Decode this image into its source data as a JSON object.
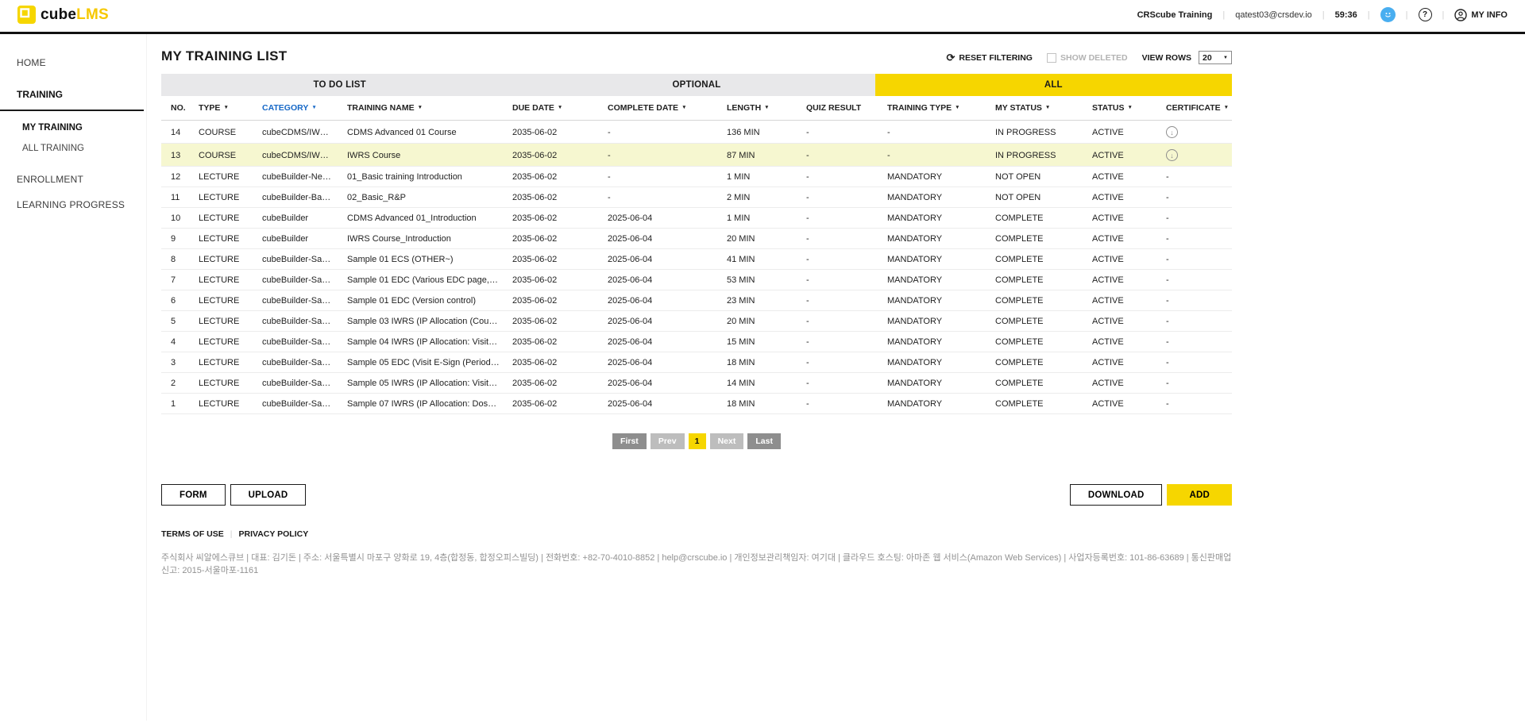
{
  "colors": {
    "accent_yellow": "#f6d600",
    "tab_inactive": "#e8e8ea",
    "highlight_row": "#f6f7d0",
    "filter_active_blue": "#1668c7"
  },
  "icons": {
    "caret": "▼",
    "refresh": "⟳",
    "download_arrow": "↓",
    "question": "?",
    "chat": "●"
  },
  "header": {
    "logo_cube": "cube",
    "logo_lms": "LMS",
    "study_name": "CRScube Training",
    "email": "qatest03@crsdev.io",
    "session_timer": "59:36",
    "my_info_label": "MY INFO",
    "separator": "|"
  },
  "sidebar": {
    "home": "HOME",
    "training": "TRAINING",
    "my_training": "MY TRAINING",
    "all_training": "ALL TRAINING",
    "enrollment": "ENROLLMENT",
    "learning_progress": "LEARNING PROGRESS"
  },
  "main": {
    "title": "MY TRAINING LIST",
    "controls": {
      "reset_filtering": "RESET FILTERING",
      "show_deleted": "SHOW DELETED",
      "view_rows_label": "VIEW ROWS",
      "view_rows_value": "20"
    },
    "tabs": [
      {
        "label": "TO DO LIST",
        "active": false
      },
      {
        "label": "OPTIONAL",
        "active": false
      },
      {
        "label": "ALL",
        "active": true
      }
    ],
    "table": {
      "columns": [
        {
          "label": "NO.",
          "filter": false
        },
        {
          "label": "TYPE",
          "filter": true
        },
        {
          "label": "CATEGORY",
          "filter": true,
          "filter_active": true
        },
        {
          "label": "TRAINING NAME",
          "filter": true
        },
        {
          "label": "DUE DATE",
          "filter": true
        },
        {
          "label": "COMPLETE DATE",
          "filter": true
        },
        {
          "label": "LENGTH",
          "filter": true
        },
        {
          "label": "QUIZ RESULT",
          "filter": false
        },
        {
          "label": "TRAINING TYPE",
          "filter": true
        },
        {
          "label": "MY STATUS",
          "filter": true
        },
        {
          "label": "STATUS",
          "filter": true
        },
        {
          "label": "CERTIFICATE",
          "filter": true
        }
      ],
      "rows": [
        {
          "no": "14",
          "type": "COURSE",
          "category": "cubeCDMS/IWRS/P…",
          "name": "CDMS Advanced 01 Course",
          "due": "2035-06-02",
          "complete": "-",
          "length": "136 MIN",
          "quiz": "-",
          "training_type": "-",
          "my_status": "IN PROGRESS",
          "status": "ACTIVE",
          "certificate": "download-icon",
          "highlighted": false
        },
        {
          "no": "13",
          "type": "COURSE",
          "category": "cubeCDMS/IWRS/P…",
          "name": "IWRS Course",
          "due": "2035-06-02",
          "complete": "-",
          "length": "87 MIN",
          "quiz": "-",
          "training_type": "-",
          "my_status": "IN PROGRESS",
          "status": "ACTIVE",
          "certificate": "download-icon",
          "highlighted": true
        },
        {
          "no": "12",
          "type": "LECTURE",
          "category": "cubeBuilder-New c…",
          "name": "01_Basic training Introduction",
          "due": "2035-06-02",
          "complete": "-",
          "length": "1 MIN",
          "quiz": "-",
          "training_type": "MANDATORY",
          "my_status": "NOT OPEN",
          "status": "ACTIVE",
          "certificate": "-",
          "highlighted": false
        },
        {
          "no": "11",
          "type": "LECTURE",
          "category": "cubeBuilder-Basic …",
          "name": "02_Basic_R&P",
          "due": "2035-06-02",
          "complete": "-",
          "length": "2 MIN",
          "quiz": "-",
          "training_type": "MANDATORY",
          "my_status": "NOT OPEN",
          "status": "ACTIVE",
          "certificate": "-",
          "highlighted": false
        },
        {
          "no": "10",
          "type": "LECTURE",
          "category": "cubeBuilder",
          "name": "CDMS Advanced 01_Introduction",
          "due": "2035-06-02",
          "complete": "2025-06-04",
          "length": "1 MIN",
          "quiz": "-",
          "training_type": "MANDATORY",
          "my_status": "COMPLETE",
          "status": "ACTIVE",
          "certificate": "-",
          "highlighted": false
        },
        {
          "no": "9",
          "type": "LECTURE",
          "category": "cubeBuilder",
          "name": "IWRS Course_Introduction",
          "due": "2035-06-02",
          "complete": "2025-06-04",
          "length": "20 MIN",
          "quiz": "-",
          "training_type": "MANDATORY",
          "my_status": "COMPLETE",
          "status": "ACTIVE",
          "certificate": "-",
          "highlighted": false
        },
        {
          "no": "8",
          "type": "LECTURE",
          "category": "cubeBuilder-Sampl…",
          "name": "Sample 01 ECS (OTHER~)",
          "due": "2035-06-02",
          "complete": "2025-06-04",
          "length": "41 MIN",
          "quiz": "-",
          "training_type": "MANDATORY",
          "my_status": "COMPLETE",
          "status": "ACTIVE",
          "certificate": "-",
          "highlighted": false
        },
        {
          "no": "7",
          "type": "LECTURE",
          "category": "cubeBuilder-Sampl…",
          "name": "Sample 01 EDC (Various EDC page, Central…",
          "due": "2035-06-02",
          "complete": "2025-06-04",
          "length": "53 MIN",
          "quiz": "-",
          "training_type": "MANDATORY",
          "my_status": "COMPLETE",
          "status": "ACTIVE",
          "certificate": "-",
          "highlighted": false
        },
        {
          "no": "6",
          "type": "LECTURE",
          "category": "cubeBuilder-Sampl…",
          "name": "Sample 01 EDC (Version control)",
          "due": "2035-06-02",
          "complete": "2025-06-04",
          "length": "23 MIN",
          "quiz": "-",
          "training_type": "MANDATORY",
          "my_status": "COMPLETE",
          "status": "ACTIVE",
          "certificate": "-",
          "highlighted": false
        },
        {
          "no": "5",
          "type": "LECTURE",
          "category": "cubeBuilder-Sampl…",
          "name": "Sample 03 IWRS (IP Allocation (Count type))",
          "due": "2035-06-02",
          "complete": "2025-06-04",
          "length": "20 MIN",
          "quiz": "-",
          "training_type": "MANDATORY",
          "my_status": "COMPLETE",
          "status": "ACTIVE",
          "certificate": "-",
          "highlighted": false
        },
        {
          "no": "4",
          "type": "LECTURE",
          "category": "cubeBuilder-Sampl…",
          "name": "Sample 04 IWRS (IP Allocation: Visit+Back…",
          "due": "2035-06-02",
          "complete": "2025-06-04",
          "length": "15 MIN",
          "quiz": "-",
          "training_type": "MANDATORY",
          "my_status": "COMPLETE",
          "status": "ACTIVE",
          "certificate": "-",
          "highlighted": false
        },
        {
          "no": "3",
          "type": "LECTURE",
          "category": "cubeBuilder-Sampl…",
          "name": "Sample 05 EDC (Visit E-Sign (Period), Item …",
          "due": "2035-06-02",
          "complete": "2025-06-04",
          "length": "18 MIN",
          "quiz": "-",
          "training_type": "MANDATORY",
          "my_status": "COMPLETE",
          "status": "ACTIVE",
          "certificate": "-",
          "highlighted": false
        },
        {
          "no": "2",
          "type": "LECTURE",
          "category": "cubeBuilder-Sampl…",
          "name": "Sample 05 IWRS (IP Allocation: Visit+Run-i…",
          "due": "2035-06-02",
          "complete": "2025-06-04",
          "length": "14 MIN",
          "quiz": "-",
          "training_type": "MANDATORY",
          "my_status": "COMPLETE",
          "status": "ACTIVE",
          "certificate": "-",
          "highlighted": false
        },
        {
          "no": "1",
          "type": "LECTURE",
          "category": "cubeBuilder-Sampl…",
          "name": "Sample 07 IWRS (IP Allocation: Dose+Cou…",
          "due": "2035-06-02",
          "complete": "2025-06-04",
          "length": "18 MIN",
          "quiz": "-",
          "training_type": "MANDATORY",
          "my_status": "COMPLETE",
          "status": "ACTIVE",
          "certificate": "-",
          "highlighted": false
        }
      ]
    },
    "pagination": {
      "first": "First",
      "prev": "Prev",
      "current": "1",
      "next": "Next",
      "last": "Last"
    },
    "actions": {
      "form": "FORM",
      "upload": "UPLOAD",
      "download": "DOWNLOAD",
      "add": "ADD"
    }
  },
  "footer": {
    "terms": "TERMS OF USE",
    "privacy": "PRIVACY POLICY",
    "separator": "|",
    "company_info": "주식회사 씨알에스큐브 | 대표: 김기돈 | 주소: 서울특별시 마포구 양화로 19, 4층(합정동, 합정오피스빌딩) | 전화번호: +82-70-4010-8852 | help@crscube.io | 개인정보관리책임자: 여기대 | 클라우드 호스팅: 아마존 웹 서비스(Amazon Web Services) | 사업자등록번호: 101-86-63689 | 통신판매업신고: 2015-서울마포-1161"
  }
}
